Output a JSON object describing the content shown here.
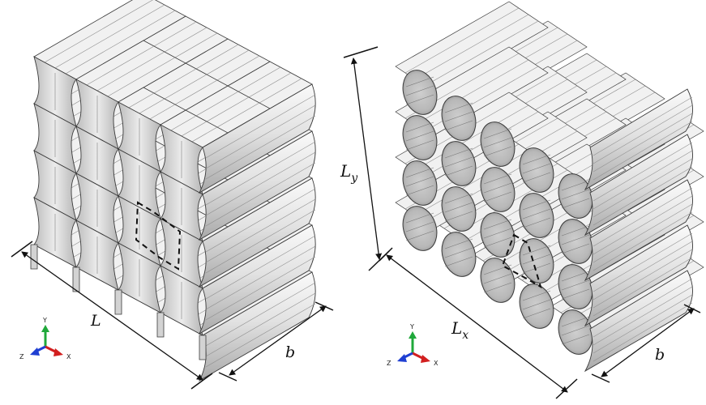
{
  "figure": {
    "left_panel": {
      "dimensions": {
        "length": "L",
        "depth": "b"
      },
      "triad": {
        "x": "X",
        "y": "Y",
        "z": "Z"
      }
    },
    "right_panel": {
      "dimensions": {
        "length": "L",
        "length_sub": "x",
        "height": "L",
        "height_sub": "y",
        "depth": "b"
      },
      "triad": {
        "x": "X",
        "y": "Y",
        "z": "Z"
      }
    }
  },
  "colors": {
    "face_light": "#f1f1f1",
    "face_mid": "#d3d3d3",
    "face_dark": "#9a9a9a",
    "edge": "#3a3a3a",
    "axis_x": "#d21f1f",
    "axis_y": "#1fa83a",
    "axis_z": "#1f3fd2"
  },
  "icons": [
    "coordinate-triad-icon",
    "dimension-arrow-icon",
    "unit-cell-dashed-outline"
  ]
}
